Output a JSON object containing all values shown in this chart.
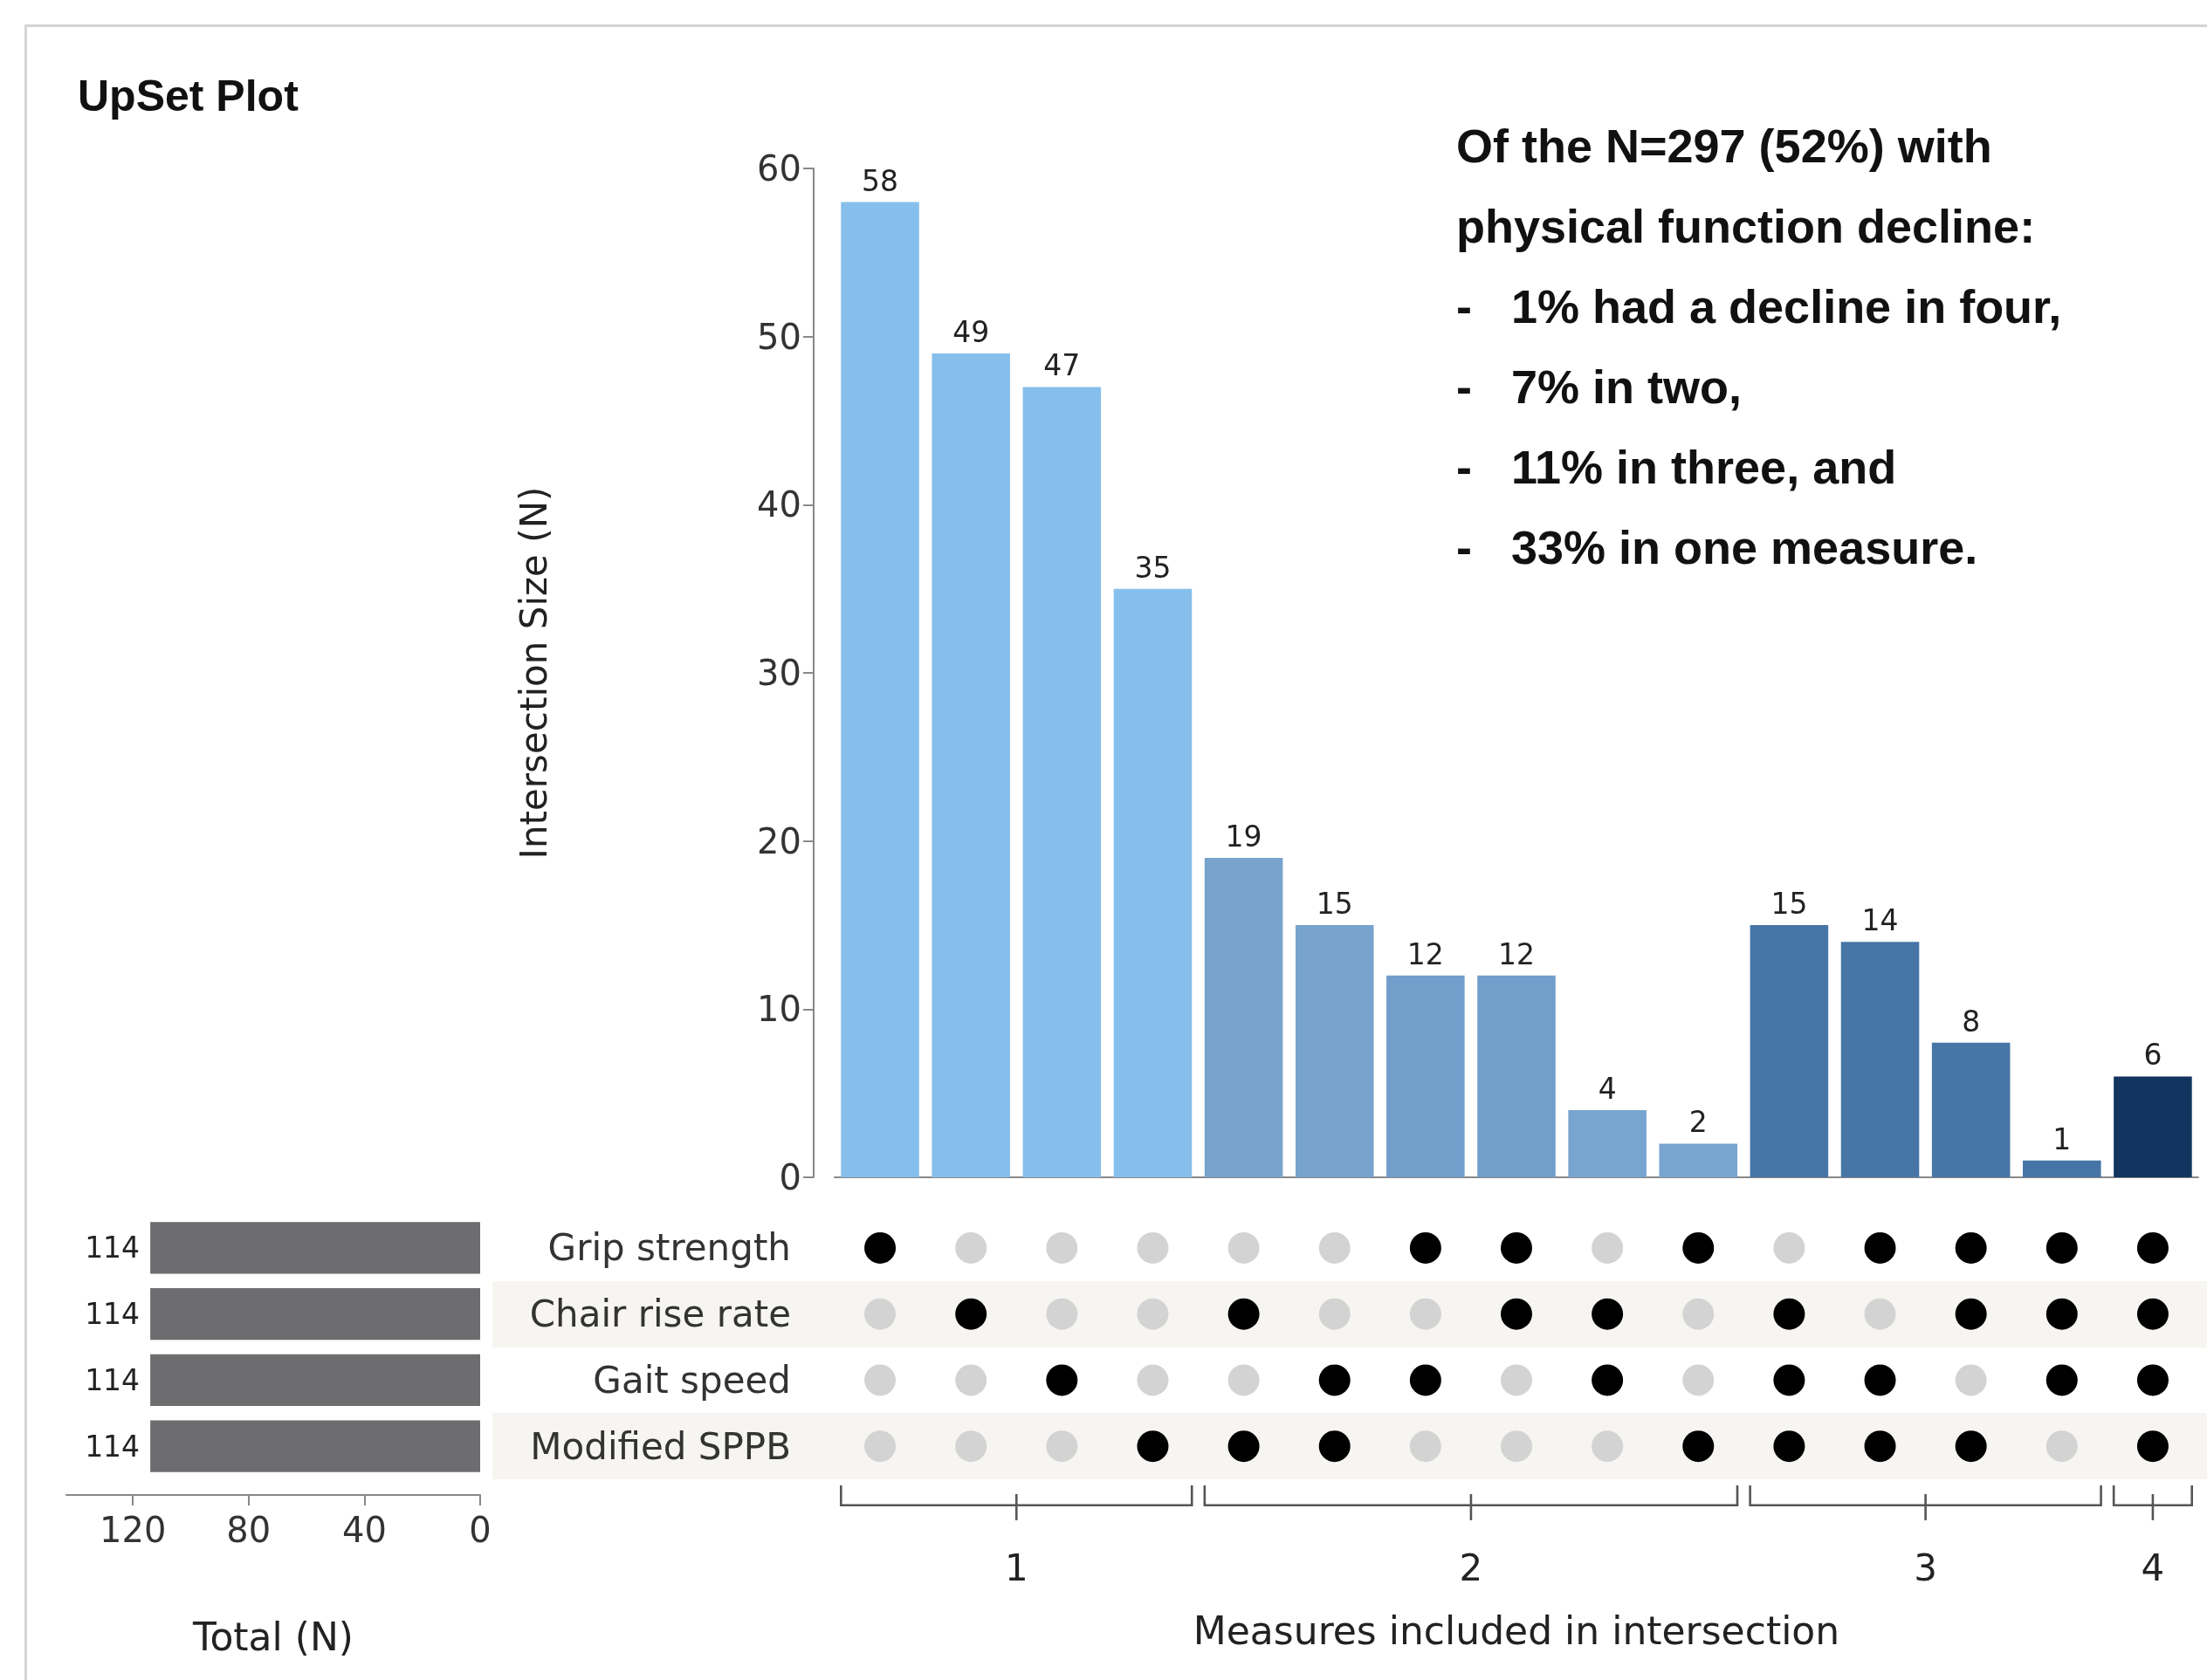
{
  "chart_data": [
    {
      "type": "bar",
      "ylabel": "Intersection Size (N)",
      "categories": [
        null,
        null,
        null,
        null,
        null,
        null,
        null,
        null,
        null,
        null,
        null,
        null,
        null,
        null,
        null
      ],
      "values": [
        58,
        49,
        47,
        35,
        19,
        15,
        12,
        12,
        4,
        2,
        15,
        14,
        8,
        1,
        6
      ],
      "colors": [
        "#86bfeb",
        "#86bfeb",
        "#86bfeb",
        "#86bfeb",
        "#77a3cd",
        "#77a3cd",
        "#719ecb",
        "#719ecb",
        "#78a4d0",
        "#78a4d0",
        "#4675a6",
        "#4675a6",
        "#4675a6",
        "#4675a6",
        "#12355f"
      ],
      "ylim": [
        0,
        60
      ],
      "yticks": [
        0,
        10,
        20,
        30,
        40,
        50,
        60
      ],
      "data_labels": true,
      "grid": false,
      "annotations": [
        "Of the N=297 (52%) with",
        "physical function decline:",
        "-   1% had a decline in four,",
        "-   7% in two,",
        "-   11% in three, and",
        "-   33% in one measure."
      ]
    },
    {
      "type": "bar",
      "orientation": "horizontal",
      "title": "UpSet Plot",
      "xlabel": "Total (N)",
      "categories": [
        "Grip strength",
        "Chair rise rate",
        "Gait speed",
        "Modified SPPB"
      ],
      "values": [
        114,
        114,
        114,
        114
      ],
      "colors": [
        "#6d6d6f",
        "#6d6d6f",
        "#6d6d6f",
        "#6d6d6f"
      ],
      "xlim": [
        143,
        0
      ],
      "xticks": [
        120,
        80,
        40,
        0
      ],
      "data_labels": true,
      "grid": false
    },
    {
      "type": "other",
      "xlabel": "Measures included in intersection",
      "cells": [
        [
          true,
          false,
          false,
          false,
          false,
          false,
          true,
          true,
          false,
          true,
          false,
          true,
          true,
          true,
          true
        ],
        [
          false,
          true,
          false,
          false,
          true,
          false,
          false,
          true,
          true,
          false,
          true,
          false,
          true,
          true,
          true
        ],
        [
          false,
          false,
          true,
          false,
          false,
          true,
          true,
          false,
          true,
          false,
          true,
          true,
          false,
          true,
          true
        ],
        [
          false,
          false,
          false,
          true,
          true,
          true,
          false,
          false,
          false,
          true,
          true,
          true,
          true,
          false,
          true
        ]
      ],
      "annotations": [
        "1",
        "2",
        "3",
        "4"
      ]
    }
  ]
}
